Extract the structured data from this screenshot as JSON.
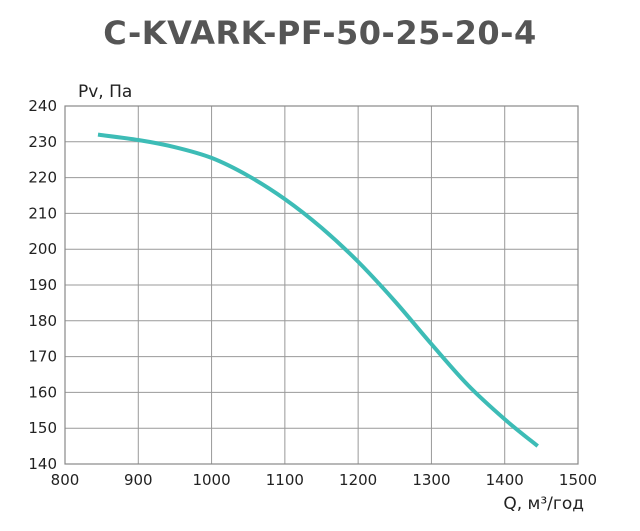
{
  "chart_data": {
    "type": "line",
    "title": "C-KVARK-PF-50-25-20-4",
    "xlabel": "Q, м³/год",
    "ylabel": "Pv, Па",
    "xlim": [
      800,
      1500
    ],
    "ylim": [
      140,
      240
    ],
    "x_ticks": [
      "800",
      "900",
      "1000",
      "1100",
      "1200",
      "1300",
      "1400",
      "1500"
    ],
    "y_ticks": [
      "140",
      "150",
      "160",
      "170",
      "180",
      "190",
      "200",
      "210",
      "220",
      "230",
      "240"
    ],
    "grid": true,
    "series": [
      {
        "name": "Pv",
        "color": "#3dbcb6",
        "x": [
          845,
          900,
          950,
          1000,
          1050,
          1100,
          1150,
          1200,
          1250,
          1300,
          1350,
          1400,
          1445
        ],
        "y": [
          232,
          230.5,
          228.5,
          225.5,
          220.5,
          214,
          206,
          196.5,
          185.5,
          173.5,
          162,
          152.5,
          145
        ]
      }
    ]
  }
}
